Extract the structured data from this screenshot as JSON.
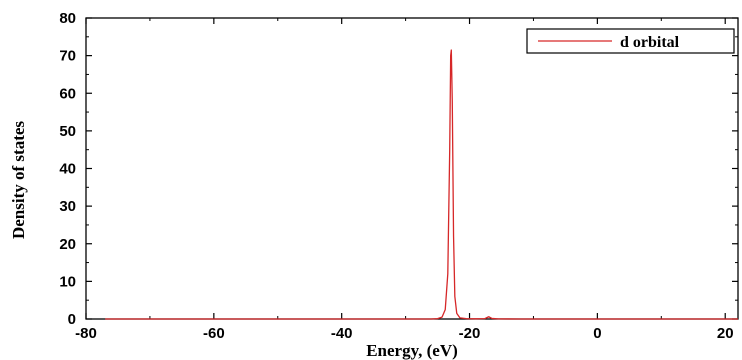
{
  "chart_data": {
    "type": "line",
    "title": "",
    "xlabel": "Energy, (eV)",
    "ylabel": "Density of states",
    "xlim": [
      -80,
      22
    ],
    "ylim": [
      0,
      80
    ],
    "x_ticks": [
      -80,
      -60,
      -40,
      -20,
      0,
      20
    ],
    "x_tick_labels": [
      "-80",
      "-60",
      "-40",
      "-20",
      "0",
      "20"
    ],
    "y_ticks": [
      0,
      10,
      20,
      30,
      40,
      50,
      60,
      70,
      80
    ],
    "y_tick_labels": [
      "0",
      "10",
      "20",
      "30",
      "40",
      "50",
      "60",
      "70",
      "80"
    ],
    "grid": false,
    "legend_position": "top-right",
    "series": [
      {
        "name": "d orbital",
        "color": "#d62728",
        "x": [
          -77,
          -30,
          -26,
          -25,
          -24.3,
          -23.8,
          -23.4,
          -23.1,
          -22.95,
          -22.85,
          -22.7,
          -22.5,
          -22.3,
          -22.0,
          -21.5,
          -20.5,
          -19,
          -17.6,
          -17.0,
          -16.5,
          -15.5,
          -12,
          0,
          22
        ],
        "y": [
          0,
          0,
          0,
          0.1,
          0.5,
          2.5,
          12,
          45,
          70,
          71.5,
          58,
          22,
          6,
          1.5,
          0.3,
          0.1,
          0.05,
          0.1,
          0.6,
          0.15,
          0.03,
          0,
          0,
          0
        ]
      }
    ]
  }
}
